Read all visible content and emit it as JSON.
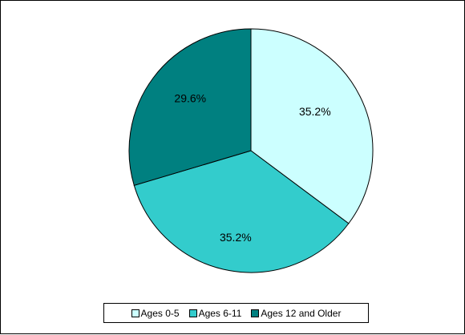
{
  "chart_data": {
    "type": "pie",
    "slices": [
      {
        "label": "Ages 0-5",
        "value": 35.2,
        "display": "35.2%",
        "color": "#ccffff"
      },
      {
        "label": "Ages 6-11",
        "value": 35.2,
        "display": "35.2%",
        "color": "#33cccc"
      },
      {
        "label": "Ages 12 and Older",
        "value": 29.6,
        "display": "29.6%",
        "color": "#008080"
      }
    ],
    "start_angle": "12 o'clock",
    "direction": "clockwise",
    "legend_position": "bottom",
    "slice_border_color": "#000000"
  }
}
